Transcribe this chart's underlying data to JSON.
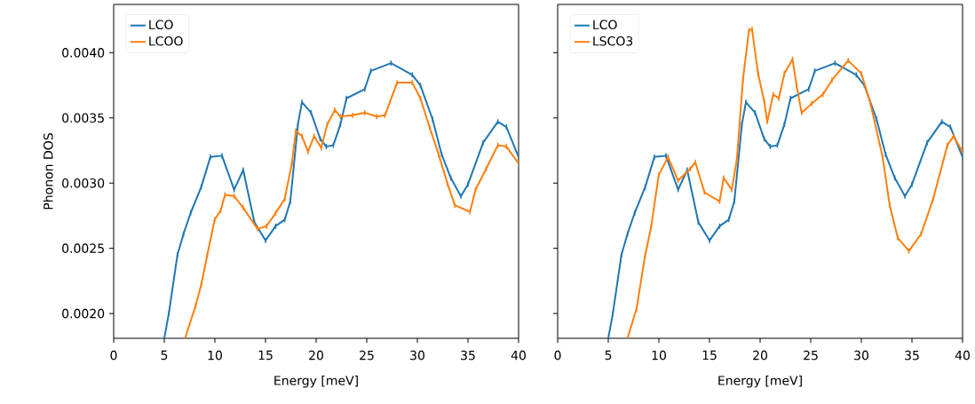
{
  "chart_data": [
    {
      "type": "line",
      "xlabel": "Energy [meV]",
      "ylabel": "Phonon DOS",
      "xlim": [
        0,
        40
      ],
      "xticks": [
        0,
        5,
        10,
        15,
        20,
        25,
        30,
        35,
        40
      ],
      "ylim": [
        0.00181,
        0.00437
      ],
      "yticks": [
        {
          "value": 0.002,
          "label": "0.0020"
        },
        {
          "value": 0.0025,
          "label": "0.0025"
        },
        {
          "value": 0.003,
          "label": "0.0030"
        },
        {
          "value": 0.0035,
          "label": "0.0035"
        },
        {
          "value": 0.004,
          "label": "0.0040"
        }
      ],
      "legend": "top left",
      "series": [
        {
          "name": "LCO",
          "color": "#1f77b4",
          "x": [
            5,
            5.45,
            6.3,
            6.9,
            7.6,
            8.65,
            9.55,
            10.7,
            11.9,
            12.8,
            13.9,
            15.0,
            16.0,
            16.9,
            17.45,
            18.2,
            18.6,
            19.5,
            20.4,
            21.0,
            21.7,
            22.4,
            23.0,
            24.8,
            25.4,
            27.4,
            29.5,
            30.3,
            31.5,
            32.4,
            33.3,
            34.3,
            35.0,
            36.5,
            37.95,
            38.8,
            40.0
          ],
          "values": [
            0.00181,
            0.002,
            0.00245,
            0.00261,
            0.00277,
            0.00297,
            0.0032,
            0.00321,
            0.00295,
            0.0031,
            0.0027,
            0.00256,
            0.00267,
            0.00272,
            0.00286,
            0.00345,
            0.00362,
            0.00354,
            0.00334,
            0.00328,
            0.00329,
            0.00345,
            0.00365,
            0.00372,
            0.00386,
            0.00392,
            0.00383,
            0.00375,
            0.00349,
            0.00322,
            0.00304,
            0.0029,
            0.00299,
            0.00331,
            0.00347,
            0.00343,
            0.0032
          ],
          "errors": [
            null,
            2e-05,
            2e-05,
            2e-05,
            2e-05,
            2e-05,
            2e-05,
            2e-05,
            2e-05,
            2e-05,
            2e-05,
            2e-05,
            2e-05,
            2e-05,
            2e-05,
            2e-05,
            2e-05,
            2e-05,
            2e-05,
            2e-05,
            2e-05,
            2e-05,
            2e-05,
            2e-05,
            2e-05,
            2e-05,
            2e-05,
            2e-05,
            2e-05,
            2e-05,
            2e-05,
            2e-05,
            2e-05,
            2e-05,
            2e-05,
            2e-05,
            2e-05
          ]
        },
        {
          "name": "LCOO",
          "color": "#ff7f0e",
          "x": [
            7.05,
            8.1,
            8.65,
            9.25,
            9.98,
            10.57,
            11.0,
            11.9,
            12.8,
            14.2,
            15.1,
            16.0,
            16.9,
            17.6,
            18.0,
            18.6,
            19.2,
            19.8,
            20.5,
            21.1,
            21.85,
            22.4,
            23.6,
            24.8,
            26.0,
            26.8,
            28.0,
            29.5,
            30.3,
            31.2,
            32.1,
            33.0,
            33.7,
            35.2,
            35.75,
            36.8,
            37.95,
            38.8,
            40.0
          ],
          "values": [
            0.00181,
            0.00206,
            0.00222,
            0.00245,
            0.00272,
            0.00279,
            0.00291,
            0.0029,
            0.00281,
            0.00265,
            0.00267,
            0.00277,
            0.00288,
            0.00315,
            0.0034,
            0.00336,
            0.00324,
            0.00336,
            0.00327,
            0.00345,
            0.00356,
            0.00351,
            0.00352,
            0.00354,
            0.00351,
            0.00352,
            0.00377,
            0.00377,
            0.00365,
            0.00343,
            0.00322,
            0.00299,
            0.00283,
            0.00278,
            0.00295,
            0.00311,
            0.00329,
            0.00328,
            0.00315
          ],
          "errors": [
            null,
            2e-05,
            2e-05,
            2e-05,
            2e-05,
            2e-05,
            2e-05,
            2e-05,
            2e-05,
            2e-05,
            2e-05,
            2e-05,
            2e-05,
            2e-05,
            2e-05,
            2e-05,
            2e-05,
            2e-05,
            2e-05,
            2e-05,
            2e-05,
            2e-05,
            2e-05,
            2e-05,
            2e-05,
            2e-05,
            2e-05,
            2e-05,
            2e-05,
            2e-05,
            2e-05,
            2e-05,
            2e-05,
            2e-05,
            2e-05,
            2e-05,
            2e-05,
            2e-05,
            2e-05
          ]
        }
      ]
    },
    {
      "type": "line",
      "xlabel": "Energy [meV]",
      "xlim": [
        0,
        40
      ],
      "xticks": [
        0,
        5,
        10,
        15,
        20,
        25,
        30,
        35,
        40
      ],
      "ylim": [
        0.00181,
        0.00437
      ],
      "yticks": [
        0.002,
        0.0025,
        0.003,
        0.0035,
        0.004
      ],
      "tick_labels": "x",
      "legend": "top left",
      "series": [
        {
          "name": "LCO",
          "color": "#1f77b4",
          "x": [
            5,
            5.45,
            6.3,
            6.9,
            7.6,
            8.65,
            9.55,
            10.7,
            11.9,
            12.8,
            13.9,
            15.0,
            16.0,
            16.9,
            17.45,
            18.2,
            18.6,
            19.5,
            20.4,
            21.0,
            21.7,
            22.4,
            23.0,
            24.8,
            25.4,
            27.4,
            29.5,
            30.3,
            31.5,
            32.4,
            33.3,
            34.3,
            35.0,
            36.5,
            37.95,
            38.8,
            40.0
          ],
          "values": [
            0.00181,
            0.002,
            0.00245,
            0.00261,
            0.00277,
            0.00297,
            0.0032,
            0.00321,
            0.00295,
            0.0031,
            0.0027,
            0.00256,
            0.00267,
            0.00272,
            0.00286,
            0.00345,
            0.00362,
            0.00354,
            0.00334,
            0.00328,
            0.00329,
            0.00345,
            0.00365,
            0.00372,
            0.00386,
            0.00392,
            0.00383,
            0.00375,
            0.00349,
            0.00322,
            0.00304,
            0.0029,
            0.00299,
            0.00331,
            0.00347,
            0.00343,
            0.0032
          ],
          "errors": [
            null,
            2e-05,
            2e-05,
            2e-05,
            2e-05,
            2e-05,
            2e-05,
            2e-05,
            2e-05,
            2e-05,
            2e-05,
            2e-05,
            2e-05,
            2e-05,
            2e-05,
            2e-05,
            2e-05,
            2e-05,
            2e-05,
            2e-05,
            2e-05,
            2e-05,
            2e-05,
            2e-05,
            2e-05,
            2e-05,
            2e-05,
            2e-05,
            2e-05,
            2e-05,
            2e-05,
            2e-05,
            2e-05,
            2e-05,
            2e-05,
            2e-05,
            2e-05
          ]
        },
        {
          "name": "LSCO3",
          "color": "#ff7f0e",
          "x": [
            6.9,
            7.8,
            8.65,
            9.25,
            9.98,
            10.9,
            11.9,
            13.1,
            13.6,
            14.5,
            16.0,
            16.4,
            17.2,
            17.7,
            18.3,
            18.9,
            19.2,
            19.8,
            20.4,
            20.7,
            21.3,
            21.85,
            22.4,
            23.2,
            23.6,
            24.1,
            25.1,
            26.2,
            27.1,
            28.7,
            30.0,
            30.9,
            32.1,
            32.8,
            33.6,
            34.7,
            35.9,
            37.1,
            38.5,
            39.1,
            40.0
          ],
          "values": [
            0.00181,
            0.00204,
            0.00245,
            0.00267,
            0.00306,
            0.0032,
            0.00302,
            0.00311,
            0.00316,
            0.00293,
            0.00286,
            0.00304,
            0.00295,
            0.00318,
            0.00379,
            0.00417,
            0.00418,
            0.00384,
            0.00363,
            0.00347,
            0.00368,
            0.00365,
            0.00384,
            0.00395,
            0.00375,
            0.00354,
            0.00361,
            0.00368,
            0.00379,
            0.00394,
            0.00384,
            0.00361,
            0.0032,
            0.00283,
            0.00258,
            0.00248,
            0.00261,
            0.00288,
            0.00329,
            0.00336,
            0.00324
          ],
          "errors": [
            null,
            2e-05,
            2e-05,
            2e-05,
            2e-05,
            2e-05,
            2e-05,
            2e-05,
            2e-05,
            2e-05,
            2e-05,
            2e-05,
            2e-05,
            2e-05,
            2e-05,
            2e-05,
            2e-05,
            2e-05,
            2e-05,
            2e-05,
            2e-05,
            2e-05,
            2e-05,
            2e-05,
            2e-05,
            2e-05,
            2e-05,
            2e-05,
            2e-05,
            2e-05,
            2e-05,
            2e-05,
            2e-05,
            2e-05,
            2e-05,
            2e-05,
            2e-05,
            2e-05,
            2e-05,
            2e-05,
            2e-05
          ]
        }
      ]
    }
  ]
}
